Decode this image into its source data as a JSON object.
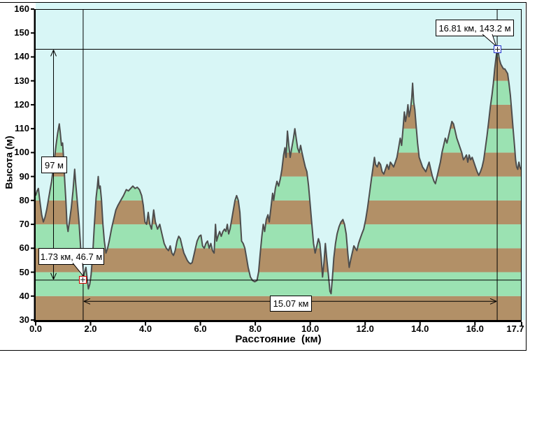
{
  "axes": {
    "y_title": "Высота (м)",
    "x_title": "Расстояние  (км)",
    "y_tick_values": [
      160,
      150,
      140,
      130,
      120,
      110,
      100,
      90,
      80,
      70,
      60,
      50,
      40,
      30
    ],
    "y_tick_labels": [
      "160",
      "150",
      "140",
      "130",
      "120",
      "110",
      "100",
      "90",
      "80",
      "70",
      "60",
      "50",
      "40",
      "30"
    ],
    "x_tick_values": [
      0,
      2,
      4,
      6,
      8,
      10,
      12,
      14,
      16,
      17.7
    ],
    "x_tick_labels": [
      "0.0",
      "2.0",
      "4.0",
      "6.0",
      "8.0",
      "10.0",
      "12.0",
      "14.0",
      "16.0",
      "17.7"
    ]
  },
  "colors": {
    "plot_bg": "#d8f6f6",
    "band_brown": "#b29067",
    "band_green": "#9be2b2",
    "outline": "#4d4d4d",
    "measure_line": "#000000",
    "low_marker_border": "#d40000",
    "high_marker_border": "#2233cc",
    "window_bg": "#ffffff",
    "frame": "#000000"
  },
  "chart_data": {
    "type": "area",
    "title": "",
    "xlabel": "Расстояние (км)",
    "ylabel": "Высота (м)",
    "xlim": [
      0,
      17.7
    ],
    "ylim": [
      30,
      160
    ],
    "grid": false,
    "band_interval_m": 10,
    "annotations": [
      {
        "type": "point-callout",
        "x_km": 1.73,
        "y_m": 46.7,
        "label": "1.73 км, 46.7 м",
        "marker": "red-square-plus"
      },
      {
        "type": "point-callout",
        "x_km": 16.81,
        "y_m": 143.2,
        "label": "16.81 км, 143.2 м",
        "marker": "blue-square-plus"
      },
      {
        "type": "vertical-span-arrow",
        "x_km": 0.65,
        "from_m": 46.7,
        "to_m": 143.2,
        "label": "97 м"
      },
      {
        "type": "horizontal-span-arrow",
        "y_m": 37.8,
        "from_km": 1.73,
        "to_km": 16.81,
        "label": "15.07 км"
      }
    ],
    "profile_km_m": [
      [
        0.0,
        82
      ],
      [
        0.05,
        84
      ],
      [
        0.1,
        85
      ],
      [
        0.15,
        80
      ],
      [
        0.22,
        74
      ],
      [
        0.28,
        71
      ],
      [
        0.34,
        73
      ],
      [
        0.4,
        76
      ],
      [
        0.46,
        80
      ],
      [
        0.52,
        84
      ],
      [
        0.58,
        88
      ],
      [
        0.66,
        95
      ],
      [
        0.74,
        103
      ],
      [
        0.8,
        108
      ],
      [
        0.86,
        112
      ],
      [
        0.9,
        108
      ],
      [
        0.94,
        103
      ],
      [
        0.98,
        104
      ],
      [
        1.02,
        97
      ],
      [
        1.06,
        88
      ],
      [
        1.1,
        80
      ],
      [
        1.14,
        70
      ],
      [
        1.18,
        67
      ],
      [
        1.24,
        72
      ],
      [
        1.3,
        77
      ],
      [
        1.36,
        84
      ],
      [
        1.42,
        93
      ],
      [
        1.46,
        87
      ],
      [
        1.52,
        79
      ],
      [
        1.58,
        71
      ],
      [
        1.64,
        60
      ],
      [
        1.69,
        51
      ],
      [
        1.73,
        46.7
      ],
      [
        1.78,
        50
      ],
      [
        1.83,
        52
      ],
      [
        1.88,
        47
      ],
      [
        1.92,
        43
      ],
      [
        1.97,
        45
      ],
      [
        2.02,
        49
      ],
      [
        2.08,
        58
      ],
      [
        2.14,
        70
      ],
      [
        2.2,
        81
      ],
      [
        2.25,
        86
      ],
      [
        2.28,
        90
      ],
      [
        2.31,
        85
      ],
      [
        2.35,
        86
      ],
      [
        2.4,
        80
      ],
      [
        2.45,
        70
      ],
      [
        2.5,
        63
      ],
      [
        2.56,
        58
      ],
      [
        2.62,
        60
      ],
      [
        2.68,
        63
      ],
      [
        2.76,
        68
      ],
      [
        2.84,
        72
      ],
      [
        2.92,
        76
      ],
      [
        3.0,
        78
      ],
      [
        3.1,
        80
      ],
      [
        3.2,
        82
      ],
      [
        3.3,
        84.5
      ],
      [
        3.38,
        84
      ],
      [
        3.46,
        85
      ],
      [
        3.54,
        86
      ],
      [
        3.62,
        85
      ],
      [
        3.7,
        85.5
      ],
      [
        3.78,
        84.5
      ],
      [
        3.86,
        82
      ],
      [
        3.92,
        78
      ],
      [
        3.98,
        71
      ],
      [
        4.04,
        70
      ],
      [
        4.1,
        75
      ],
      [
        4.16,
        70
      ],
      [
        4.22,
        68
      ],
      [
        4.3,
        76
      ],
      [
        4.36,
        71
      ],
      [
        4.44,
        68
      ],
      [
        4.52,
        70
      ],
      [
        4.6,
        66
      ],
      [
        4.68,
        62
      ],
      [
        4.76,
        60
      ],
      [
        4.84,
        59
      ],
      [
        4.9,
        61
      ],
      [
        4.96,
        58
      ],
      [
        5.02,
        57
      ],
      [
        5.08,
        59
      ],
      [
        5.15,
        63
      ],
      [
        5.21,
        65
      ],
      [
        5.27,
        64
      ],
      [
        5.33,
        61
      ],
      [
        5.4,
        58
      ],
      [
        5.46,
        56.5
      ],
      [
        5.52,
        55
      ],
      [
        5.58,
        54
      ],
      [
        5.64,
        53.5
      ],
      [
        5.7,
        54
      ],
      [
        5.76,
        57
      ],
      [
        5.82,
        60
      ],
      [
        5.88,
        63
      ],
      [
        5.96,
        65
      ],
      [
        6.02,
        65.5
      ],
      [
        6.08,
        61
      ],
      [
        6.14,
        60
      ],
      [
        6.2,
        62
      ],
      [
        6.26,
        63
      ],
      [
        6.32,
        60
      ],
      [
        6.38,
        62
      ],
      [
        6.44,
        59
      ],
      [
        6.5,
        58
      ],
      [
        6.55,
        70
      ],
      [
        6.59,
        63
      ],
      [
        6.64,
        65
      ],
      [
        6.7,
        67
      ],
      [
        6.76,
        65
      ],
      [
        6.82,
        67
      ],
      [
        6.88,
        68
      ],
      [
        6.93,
        67
      ],
      [
        6.98,
        70
      ],
      [
        7.03,
        66
      ],
      [
        7.08,
        68
      ],
      [
        7.14,
        72
      ],
      [
        7.2,
        76
      ],
      [
        7.26,
        80
      ],
      [
        7.32,
        82
      ],
      [
        7.38,
        80
      ],
      [
        7.44,
        75
      ],
      [
        7.5,
        63
      ],
      [
        7.56,
        62
      ],
      [
        7.62,
        60
      ],
      [
        7.68,
        56
      ],
      [
        7.74,
        52
      ],
      [
        7.82,
        48
      ],
      [
        7.9,
        46.5
      ],
      [
        7.98,
        46
      ],
      [
        8.06,
        46.5
      ],
      [
        8.12,
        50
      ],
      [
        8.18,
        58
      ],
      [
        8.24,
        65
      ],
      [
        8.29,
        70
      ],
      [
        8.34,
        67
      ],
      [
        8.4,
        72
      ],
      [
        8.46,
        74
      ],
      [
        8.51,
        71
      ],
      [
        8.57,
        77
      ],
      [
        8.63,
        83
      ],
      [
        8.67,
        80
      ],
      [
        8.73,
        85
      ],
      [
        8.79,
        88
      ],
      [
        8.85,
        86
      ],
      [
        8.91,
        89
      ],
      [
        8.97,
        93
      ],
      [
        9.03,
        99
      ],
      [
        9.08,
        102
      ],
      [
        9.12,
        98
      ],
      [
        9.17,
        109
      ],
      [
        9.22,
        103
      ],
      [
        9.27,
        98
      ],
      [
        9.33,
        102
      ],
      [
        9.39,
        106
      ],
      [
        9.44,
        110
      ],
      [
        9.49,
        106
      ],
      [
        9.54,
        102
      ],
      [
        9.6,
        100
      ],
      [
        9.65,
        103
      ],
      [
        9.7,
        100
      ],
      [
        9.76,
        97
      ],
      [
        9.82,
        94
      ],
      [
        9.88,
        92
      ],
      [
        9.94,
        86
      ],
      [
        10.0,
        78
      ],
      [
        10.06,
        70
      ],
      [
        10.12,
        62
      ],
      [
        10.18,
        58
      ],
      [
        10.24,
        61
      ],
      [
        10.3,
        64
      ],
      [
        10.35,
        62
      ],
      [
        10.4,
        56
      ],
      [
        10.45,
        48
      ],
      [
        10.5,
        54
      ],
      [
        10.55,
        62
      ],
      [
        10.6,
        56
      ],
      [
        10.66,
        49
      ],
      [
        10.72,
        42
      ],
      [
        10.76,
        41
      ],
      [
        10.81,
        48
      ],
      [
        10.86,
        56
      ],
      [
        10.92,
        62
      ],
      [
        10.98,
        66
      ],
      [
        11.05,
        69
      ],
      [
        11.12,
        71
      ],
      [
        11.19,
        72
      ],
      [
        11.25,
        70
      ],
      [
        11.31,
        66
      ],
      [
        11.37,
        58
      ],
      [
        11.42,
        52
      ],
      [
        11.47,
        55
      ],
      [
        11.53,
        58
      ],
      [
        11.59,
        61
      ],
      [
        11.64,
        60
      ],
      [
        11.7,
        59
      ],
      [
        11.76,
        62
      ],
      [
        11.82,
        64
      ],
      [
        11.88,
        66
      ],
      [
        11.95,
        68
      ],
      [
        12.02,
        72
      ],
      [
        12.09,
        77
      ],
      [
        12.16,
        83
      ],
      [
        12.23,
        89
      ],
      [
        12.29,
        94
      ],
      [
        12.34,
        98
      ],
      [
        12.38,
        95
      ],
      [
        12.44,
        94
      ],
      [
        12.5,
        96
      ],
      [
        12.56,
        95
      ],
      [
        12.62,
        92
      ],
      [
        12.68,
        91
      ],
      [
        12.74,
        93
      ],
      [
        12.8,
        95
      ],
      [
        12.86,
        93
      ],
      [
        12.92,
        96
      ],
      [
        12.98,
        95
      ],
      [
        13.04,
        94
      ],
      [
        13.1,
        96
      ],
      [
        13.16,
        98
      ],
      [
        13.22,
        102
      ],
      [
        13.28,
        106
      ],
      [
        13.33,
        103
      ],
      [
        13.38,
        110
      ],
      [
        13.43,
        117
      ],
      [
        13.47,
        113
      ],
      [
        13.52,
        116
      ],
      [
        13.56,
        120
      ],
      [
        13.6,
        115
      ],
      [
        13.65,
        118
      ],
      [
        13.7,
        123
      ],
      [
        13.73,
        129
      ],
      [
        13.77,
        121
      ],
      [
        13.81,
        118
      ],
      [
        13.86,
        111
      ],
      [
        13.91,
        104
      ],
      [
        13.97,
        98
      ],
      [
        14.03,
        96
      ],
      [
        14.09,
        94
      ],
      [
        14.15,
        93
      ],
      [
        14.21,
        92
      ],
      [
        14.27,
        94
      ],
      [
        14.33,
        96
      ],
      [
        14.39,
        93
      ],
      [
        14.45,
        90
      ],
      [
        14.51,
        88
      ],
      [
        14.56,
        87
      ],
      [
        14.62,
        90
      ],
      [
        14.68,
        93
      ],
      [
        14.74,
        96
      ],
      [
        14.8,
        100
      ],
      [
        14.86,
        103
      ],
      [
        14.92,
        106
      ],
      [
        14.98,
        104
      ],
      [
        15.04,
        107
      ],
      [
        15.1,
        110
      ],
      [
        15.16,
        113
      ],
      [
        15.22,
        112
      ],
      [
        15.28,
        109
      ],
      [
        15.34,
        106
      ],
      [
        15.4,
        104
      ],
      [
        15.46,
        102
      ],
      [
        15.52,
        100
      ],
      [
        15.58,
        97
      ],
      [
        15.64,
        98
      ],
      [
        15.69,
        99
      ],
      [
        15.74,
        96
      ],
      [
        15.79,
        99
      ],
      [
        15.84,
        97
      ],
      [
        15.9,
        98
      ],
      [
        15.96,
        96
      ],
      [
        16.02,
        94
      ],
      [
        16.08,
        92
      ],
      [
        16.14,
        90.5
      ],
      [
        16.2,
        92
      ],
      [
        16.26,
        94
      ],
      [
        16.32,
        97
      ],
      [
        16.38,
        102
      ],
      [
        16.44,
        107
      ],
      [
        16.5,
        113
      ],
      [
        16.56,
        119
      ],
      [
        16.62,
        124
      ],
      [
        16.67,
        129
      ],
      [
        16.72,
        135
      ],
      [
        16.77,
        140
      ],
      [
        16.81,
        143.2
      ],
      [
        16.85,
        142
      ],
      [
        16.89,
        139
      ],
      [
        16.94,
        137
      ],
      [
        16.99,
        136
      ],
      [
        17.04,
        135
      ],
      [
        17.09,
        135
      ],
      [
        17.14,
        134
      ],
      [
        17.19,
        133
      ],
      [
        17.24,
        129
      ],
      [
        17.29,
        124
      ],
      [
        17.34,
        117
      ],
      [
        17.39,
        110
      ],
      [
        17.44,
        103
      ],
      [
        17.48,
        97
      ],
      [
        17.52,
        94
      ],
      [
        17.56,
        93
      ],
      [
        17.6,
        96
      ],
      [
        17.64,
        94
      ],
      [
        17.68,
        93
      ],
      [
        17.7,
        93
      ]
    ]
  }
}
